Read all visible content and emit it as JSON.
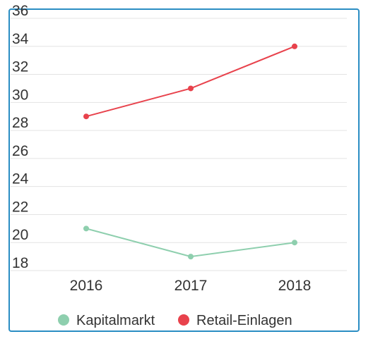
{
  "chart_data": {
    "type": "line",
    "x": [
      "2016",
      "2017",
      "2018"
    ],
    "ylim": [
      18,
      36
    ],
    "yticks": [
      18,
      20,
      22,
      24,
      26,
      28,
      30,
      32,
      34,
      36
    ],
    "grid": true,
    "legend_position": "bottom",
    "series": [
      {
        "name": "Kapitalmarkt",
        "values": [
          21,
          19,
          20
        ],
        "color": "#8ecfae"
      },
      {
        "name": "Retail-Einlagen",
        "values": [
          29,
          31,
          34
        ],
        "color": "#e8424c"
      }
    ]
  }
}
